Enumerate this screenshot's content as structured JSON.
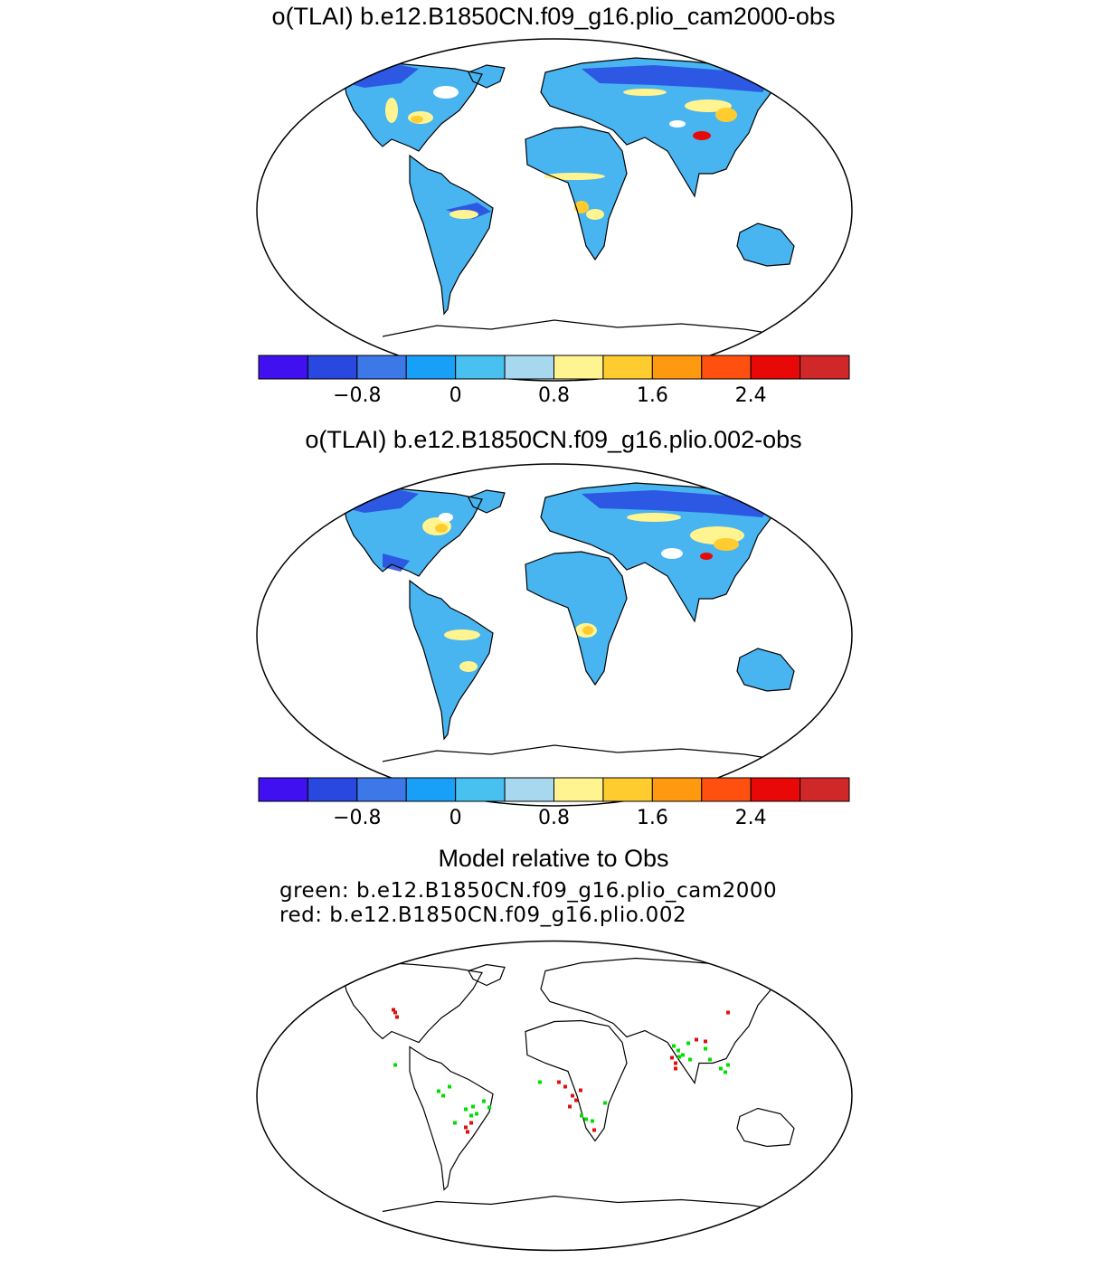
{
  "panels": [
    {
      "title": "o(TLAI) b.e12.B1850CN.f09_g16.plio_cam2000-obs"
    },
    {
      "title": "o(TLAI) b.e12.B1850CN.f09_g16.plio.002-obs"
    }
  ],
  "colorbar": {
    "colors": [
      "#4010f0",
      "#2848e0",
      "#3c78e8",
      "#18a0f8",
      "#48c0f0",
      "#a8d8f0",
      "#fff490",
      "#ffcc30",
      "#ff9a10",
      "#ff5010",
      "#e80808",
      "#d02828"
    ],
    "tick_labels": [
      "−0.8",
      "0",
      "0.8",
      "1.6",
      "2.4"
    ]
  },
  "comparison": {
    "title": "Model relative to Obs",
    "green_label": "green: b.e12.B1850CN.f09_g16.plio_cam2000",
    "red_label": "red: b.e12.B1850CN.f09_g16.plio.002",
    "green_color": "#00e000",
    "red_color": "#e01010"
  }
}
